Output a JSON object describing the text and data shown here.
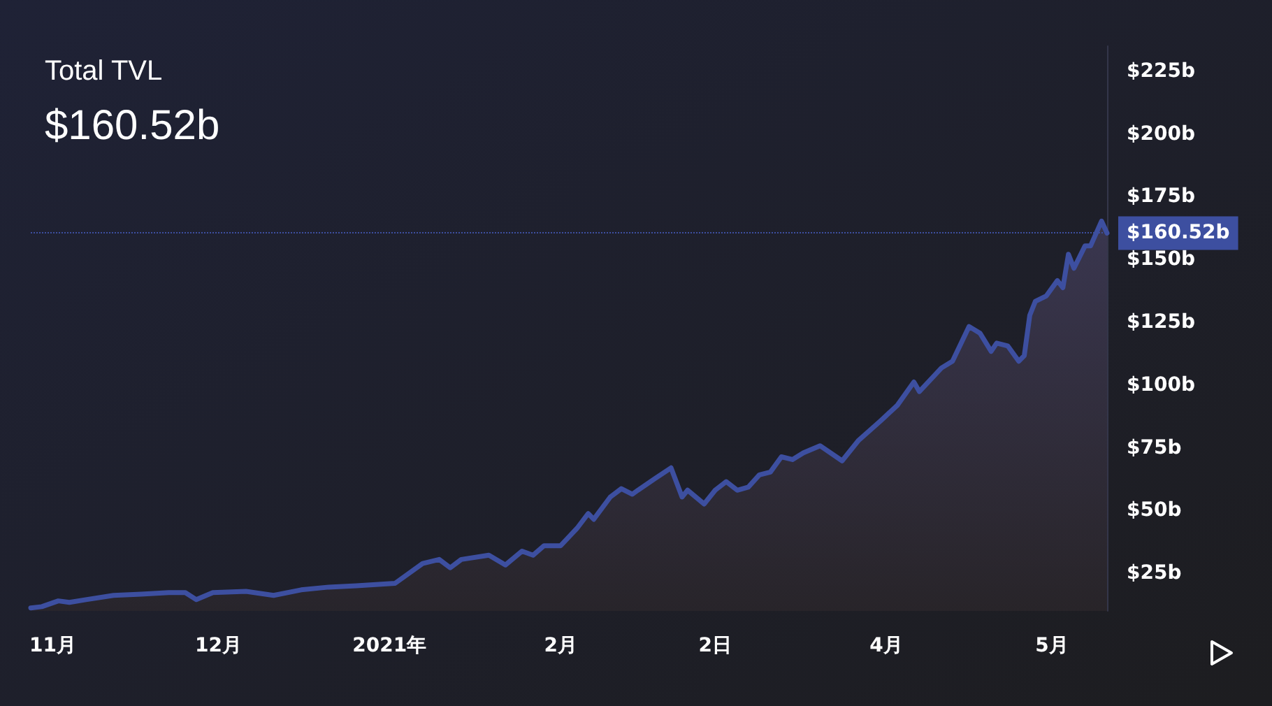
{
  "chart_data": {
    "type": "area",
    "title": "Total TVL",
    "subtitle": "$160.52b",
    "x": [
      "2020-10-28",
      "2020-10-30",
      "2020-11-02",
      "2020-11-04",
      "2020-11-07",
      "2020-11-12",
      "2020-11-17",
      "2020-11-22",
      "2020-11-25",
      "2020-11-27",
      "2020-11-30",
      "2020-12-06",
      "2020-12-11",
      "2020-12-16",
      "2020-12-21",
      "2020-12-26",
      "2021-01-02",
      "2021-01-07",
      "2021-01-10",
      "2021-01-12",
      "2021-01-14",
      "2021-01-19",
      "2021-01-22",
      "2021-01-25",
      "2021-01-27",
      "2021-01-29",
      "2021-02-01",
      "2021-02-04",
      "2021-02-06",
      "2021-02-07",
      "2021-02-10",
      "2021-02-12",
      "2021-02-14",
      "2021-02-15",
      "2021-02-18",
      "2021-02-21",
      "2021-02-23",
      "2021-02-24",
      "2021-02-27",
      "2021-03-01",
      "2021-03-03",
      "2021-03-05",
      "2021-03-07",
      "2021-03-09",
      "2021-03-11",
      "2021-03-13",
      "2021-03-15",
      "2021-03-17",
      "2021-03-20",
      "2021-03-24",
      "2021-03-27",
      "2021-03-31",
      "2021-04-03",
      "2021-04-06",
      "2021-04-07",
      "2021-04-11",
      "2021-04-13",
      "2021-04-16",
      "2021-04-18",
      "2021-04-20",
      "2021-04-21",
      "2021-04-23",
      "2021-04-25",
      "2021-04-26",
      "2021-04-27",
      "2021-04-28",
      "2021-04-30",
      "2021-05-02",
      "2021-05-03",
      "2021-05-04",
      "2021-05-05",
      "2021-05-07",
      "2021-05-08",
      "2021-05-10",
      "2021-05-11"
    ],
    "series": [
      {
        "color": "#3d4fa0",
        "values": [
          11.2,
          11.7,
          14,
          13.4,
          14.5,
          16.2,
          16.7,
          17.3,
          17.3,
          14.5,
          17.3,
          17.8,
          16.2,
          18.4,
          19.5,
          20,
          21,
          28.9,
          30.5,
          27.2,
          30.5,
          32.2,
          28.3,
          33.8,
          32.2,
          36,
          36,
          43,
          48.8,
          46.5,
          55.4,
          58.7,
          56.5,
          58.1,
          62.6,
          67,
          55.4,
          58.1,
          52.6,
          58.1,
          61.5,
          58.1,
          59.3,
          64.2,
          65.3,
          71.4,
          70.3,
          73,
          75.8,
          69.8,
          78,
          85.8,
          91.9,
          101.2,
          97.4,
          106.8,
          109.5,
          123.3,
          120.6,
          113.4,
          116.7,
          115.6,
          109.5,
          111.7,
          127.8,
          133.3,
          135.5,
          141.6,
          138.8,
          152.1,
          146.5,
          155.4,
          155.4,
          165.3,
          160.52
        ]
      }
    ],
    "xlim": [
      "2020-10-28",
      "2021-05-11"
    ],
    "xticks": [
      {
        "value": "2020-11-01",
        "label": "11月"
      },
      {
        "value": "2020-12-01",
        "label": "12月"
      },
      {
        "value": "2021-01-01",
        "label": "2021年"
      },
      {
        "value": "2021-02-01",
        "label": "2月"
      },
      {
        "value": "2021-03-01",
        "label": "2日"
      },
      {
        "value": "2021-04-01",
        "label": "4月"
      },
      {
        "value": "2021-05-01",
        "label": "5月"
      }
    ],
    "ylim": [
      10,
      235
    ],
    "yticks": [
      {
        "value": 25,
        "label": "$25b"
      },
      {
        "value": 50,
        "label": "$50b"
      },
      {
        "value": 75,
        "label": "$75b"
      },
      {
        "value": 100,
        "label": "$100b"
      },
      {
        "value": 125,
        "label": "$125b"
      },
      {
        "value": 150,
        "label": "$150b"
      },
      {
        "value": 175,
        "label": "$175b"
      },
      {
        "value": 200,
        "label": "$200b"
      },
      {
        "value": 225,
        "label": "$225b"
      }
    ],
    "ref_lines": [
      {
        "axis": "y",
        "value": 160.52,
        "label": "$160.52b",
        "color": "#3d4fa0",
        "line_style": "dotted"
      }
    ],
    "grid": false,
    "marker": "none",
    "line_style": "solid"
  }
}
